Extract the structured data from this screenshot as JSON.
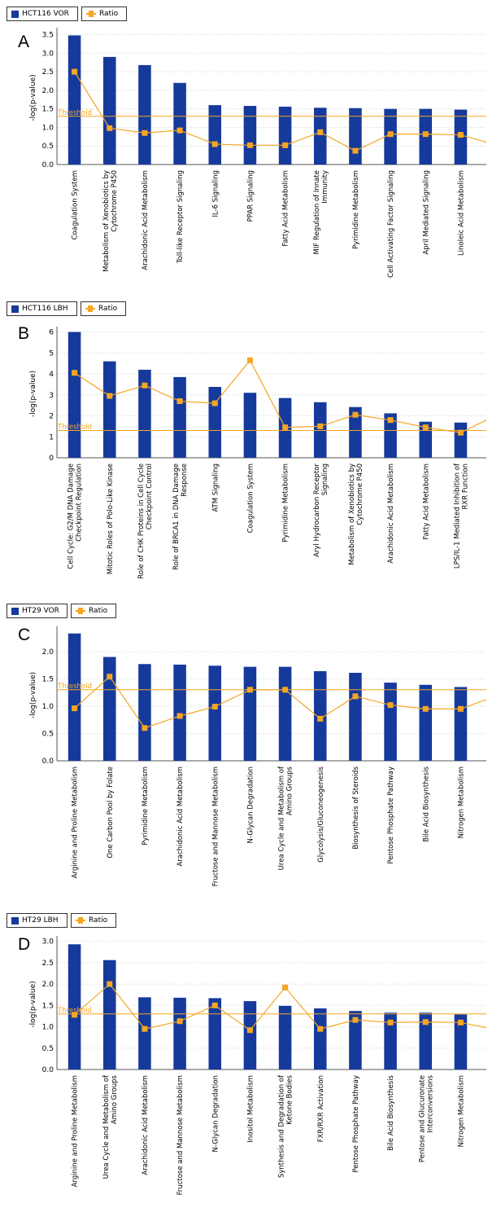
{
  "legend": {
    "ratio_label": "Ratio"
  },
  "threshold_label": "Threshold",
  "chart_data": [
    {
      "type": "bar",
      "panel": "A",
      "series_label": "HCT116 VOR",
      "ylabel": "-log(p-value)",
      "ylim": [
        0,
        3.6
      ],
      "yticks": [
        "0.0",
        "0.5",
        "1.0",
        "1.5",
        "2.0",
        "2.5",
        "3.0",
        "3.5"
      ],
      "threshold": 1.3,
      "categories": [
        [
          "Coagulation System"
        ],
        [
          "Metabolism of Xenobiotics by",
          "Cytochrome P450"
        ],
        [
          "Arachidonic Acid Metabolism"
        ],
        [
          "Toll-like Receptor Signaling"
        ],
        [
          "IL-6 Signaling"
        ],
        [
          "PPAR Signaling"
        ],
        [
          "Fatty Acid Metabolism"
        ],
        [
          "MIF Regulation of Innate",
          "Immunity"
        ],
        [
          "Pyrimidine Metabolism"
        ],
        [
          "Cell Activating Factor Signaling"
        ],
        [
          "April Mediated Signaling"
        ],
        [
          "Linoleic Acid Metabolism"
        ]
      ],
      "values": [
        3.48,
        2.9,
        2.68,
        2.2,
        1.6,
        1.58,
        1.56,
        1.53,
        1.52,
        1.5,
        1.5,
        1.48
      ],
      "ratio": [
        2.5,
        0.98,
        0.85,
        0.92,
        0.55,
        0.52,
        0.52,
        0.87,
        0.37,
        0.82,
        0.82,
        0.8
      ],
      "ratio_end": 0.6
    },
    {
      "type": "bar",
      "panel": "B",
      "series_label": "HCT116 LBH",
      "ylabel": "-log(p-value)",
      "ylim": [
        0,
        6.1
      ],
      "yticks": [
        "0",
        "1",
        "2",
        "3",
        "4",
        "5",
        "6"
      ],
      "threshold": 1.3,
      "categories": [
        [
          "Cell Cycle: G2/M DNA Damage",
          "Checkpoint Regulation"
        ],
        [
          "Mitotic Roles of Polo-Like Kinase"
        ],
        [
          "Role of CHK Proteins in Cell Cycle",
          "Checkpoint Control"
        ],
        [
          "Role of BRCA1 in DNA Damage",
          "Response"
        ],
        [
          "ATM Signaling"
        ],
        [
          "Coagulation System"
        ],
        [
          "Pyrimidine Metabolism"
        ],
        [
          "Aryl Hydrocarbon Receptor",
          "Signaling"
        ],
        [
          "Metabolism of Xenobiotics by",
          "Cytochrome P450"
        ],
        [
          "Arachidonic Acid Metabolism"
        ],
        [
          "Fatty Acid Metabolism"
        ],
        [
          "LPS/IL-1 Mediated Inhibition of",
          "RXR Function"
        ]
      ],
      "values": [
        6.0,
        4.6,
        4.2,
        3.85,
        3.38,
        3.1,
        2.85,
        2.65,
        2.42,
        2.12,
        1.72,
        1.68
      ],
      "ratio": [
        4.05,
        2.95,
        3.45,
        2.7,
        2.6,
        4.65,
        1.45,
        1.5,
        2.05,
        1.8,
        1.45,
        1.2
      ],
      "ratio_end": 1.8
    },
    {
      "type": "bar",
      "panel": "C",
      "series_label": "HT29 VOR",
      "ylabel": "-log(p-value)",
      "ylim": [
        0,
        2.4
      ],
      "yticks": [
        "0.0",
        "0.5",
        "1.0",
        "1.5",
        "2.0"
      ],
      "threshold": 1.3,
      "categories": [
        [
          "Arginine and Proline Metabolism"
        ],
        [
          "One Carbon Pool by Folate"
        ],
        [
          "Pyrimidine Metabolism"
        ],
        [
          "Arachidonic Acid Metabolism"
        ],
        [
          "Fructose and Mannose Metabolism"
        ],
        [
          "N-Glycan Degradation"
        ],
        [
          "Urea Cycle and Metabolism of",
          "Amino Groups"
        ],
        [
          "Glycolysis/Gluconeogenesis"
        ],
        [
          "Biosynthesis of Steroids"
        ],
        [
          "Pentose Phosphate Pathway"
        ],
        [
          "Bile Acid Biosynthesis"
        ],
        [
          "Nitrogen Metabolism"
        ]
      ],
      "values": [
        2.33,
        1.9,
        1.77,
        1.76,
        1.74,
        1.72,
        1.72,
        1.64,
        1.61,
        1.43,
        1.39,
        1.35
      ],
      "ratio": [
        0.96,
        1.54,
        0.6,
        0.82,
        0.99,
        1.3,
        1.3,
        0.77,
        1.18,
        1.02,
        0.95,
        0.95
      ],
      "ratio_end": 1.12
    },
    {
      "type": "bar",
      "panel": "D",
      "series_label": "HT29 LBH",
      "ylabel": "-log(p-value)",
      "ylim": [
        0,
        3.05
      ],
      "yticks": [
        "0.0",
        "0.5",
        "1.0",
        "1.5",
        "2.0",
        "2.5",
        "3.0"
      ],
      "threshold": 1.3,
      "categories": [
        [
          "Arginine and Proline Metabolism"
        ],
        [
          "Urea Cycle and Metabolism of",
          "Amino Groups"
        ],
        [
          "Arachidonic Acid Metabolism"
        ],
        [
          "Fructose and Mannose Metabolism"
        ],
        [
          "N-Glycan Degradation"
        ],
        [
          "Inositol Metabolism"
        ],
        [
          "Synthesis and Degradation of",
          "Ketone Bodies"
        ],
        [
          "FXR/RXR Activation"
        ],
        [
          "Pentose Phosphate Pathway"
        ],
        [
          "Bile Acid Biosynthesis"
        ],
        [
          "Pentose and Glucuronate",
          "Interconversions"
        ],
        [
          "Nitrogen Metabolism"
        ]
      ],
      "values": [
        2.93,
        2.56,
        1.69,
        1.68,
        1.67,
        1.6,
        1.49,
        1.43,
        1.37,
        1.33,
        1.33,
        1.29
      ],
      "ratio": [
        1.28,
        2.0,
        0.95,
        1.13,
        1.5,
        0.92,
        1.92,
        0.95,
        1.16,
        1.1,
        1.11,
        1.1
      ],
      "ratio_end": 0.98
    }
  ]
}
